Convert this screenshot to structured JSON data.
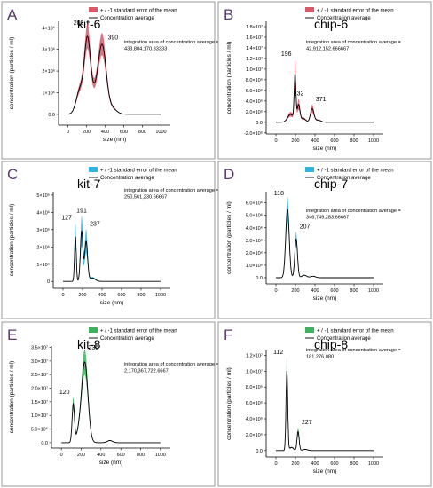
{
  "figure": {
    "x_axis_label": "size (nm)",
    "y_axis_label": "concentration (particles / ml)",
    "integration_prefix": "integration area of concentration average ="
  },
  "colors": {
    "red": "#d9596b",
    "blue": "#2fb4e3",
    "green": "#3cb35a",
    "line": "#000000",
    "border": "#9a9a9a"
  },
  "chart_data": [
    {
      "type": "line",
      "letter": "A",
      "title": "kit-6",
      "color": "red",
      "series": [
        {
          "name": "+ / -1 standard error of the mean"
        },
        {
          "name": "Concentration average"
        }
      ],
      "xlim": [
        -100,
        1100
      ],
      "ylim": [
        -500000,
        4300000
      ],
      "xticks": [
        "0",
        "200",
        "400",
        "600",
        "800",
        "1000"
      ],
      "yticks": [
        {
          "v": 0,
          "label": "0.0"
        },
        {
          "v": 1000000,
          "label": "1×10⁶"
        },
        {
          "v": 2000000,
          "label": "2×10⁶"
        },
        {
          "v": 3000000,
          "label": "3×10⁶"
        },
        {
          "v": 4000000,
          "label": "4×10⁶"
        }
      ],
      "integration_value": "433,804,170.33333",
      "peaks": [
        {
          "x": 209,
          "label": "209"
        },
        {
          "x": 390,
          "label": "390"
        }
      ],
      "components": [
        [
          130,
          1100000,
          40
        ],
        [
          209,
          3000000,
          32
        ],
        [
          280,
          900000,
          60
        ],
        [
          370,
          2900000,
          42
        ],
        [
          470,
          280000,
          50
        ]
      ],
      "band": 0.16
    },
    {
      "type": "line",
      "letter": "B",
      "title": "chip-6",
      "color": "red",
      "series": [
        {
          "name": "+ / -1 standard error of the mean"
        },
        {
          "name": "Concentration average"
        }
      ],
      "xlim": [
        -100,
        1100
      ],
      "ylim": [
        -2200000,
        19000000
      ],
      "xticks": [
        "0",
        "200",
        "400",
        "600",
        "800",
        "1000"
      ],
      "yticks": [
        {
          "v": -2000000,
          "label": "-2.0×10⁶"
        },
        {
          "v": 0,
          "label": "0.0"
        },
        {
          "v": 2000000,
          "label": "2.0×10⁶"
        },
        {
          "v": 4000000,
          "label": "4.0×10⁶"
        },
        {
          "v": 6000000,
          "label": "6.0×10⁶"
        },
        {
          "v": 8000000,
          "label": "8.0×10⁶"
        },
        {
          "v": 10000000,
          "label": "1.0×10⁷"
        },
        {
          "v": 12000000,
          "label": "1.2×10⁷"
        },
        {
          "v": 14000000,
          "label": "1.4×10⁷"
        },
        {
          "v": 16000000,
          "label": "1.6×10⁷"
        },
        {
          "v": 18000000,
          "label": "1.8×10⁷"
        }
      ],
      "integration_value": "42,912,152.666667",
      "peaks": [
        {
          "x": 196,
          "label": "196"
        },
        {
          "x": 232,
          "label": "232"
        },
        {
          "x": 371,
          "label": "371"
        }
      ],
      "components": [
        [
          150,
          1500000,
          30
        ],
        [
          196,
          8500000,
          9
        ],
        [
          232,
          3200000,
          14
        ],
        [
          280,
          700000,
          25
        ],
        [
          371,
          2500000,
          18
        ],
        [
          430,
          400000,
          30
        ]
      ],
      "band": 0.3
    },
    {
      "type": "line",
      "letter": "C",
      "title": "kit-7",
      "color": "blue",
      "series": [
        {
          "name": "+ / -1 standard error of the mean"
        },
        {
          "name": "Concentration average"
        }
      ],
      "xlim": [
        -100,
        1100
      ],
      "ylim": [
        -400000,
        5200000
      ],
      "xticks": [
        "0",
        "200",
        "400",
        "600",
        "800",
        "1000"
      ],
      "yticks": [
        {
          "v": 0,
          "label": "0"
        },
        {
          "v": 1000000,
          "label": "1×10⁶"
        },
        {
          "v": 2000000,
          "label": "2×10⁶"
        },
        {
          "v": 3000000,
          "label": "3×10⁶"
        },
        {
          "v": 4000000,
          "label": "4×10⁶"
        },
        {
          "v": 5000000,
          "label": "5×10⁶"
        }
      ],
      "integration_value": "250,561,230.66667",
      "peaks": [
        {
          "x": 127,
          "label": "127"
        },
        {
          "x": 191,
          "label": "191"
        },
        {
          "x": 237,
          "label": "237"
        }
      ],
      "components": [
        [
          127,
          2600000,
          9
        ],
        [
          191,
          2900000,
          13
        ],
        [
          237,
          2300000,
          15
        ],
        [
          300,
          200000,
          30
        ]
      ],
      "band": 0.3
    },
    {
      "type": "line",
      "letter": "D",
      "title": "chip-7",
      "color": "blue",
      "series": [
        {
          "name": "+ / -1 standard error of the mean"
        },
        {
          "name": "Concentration average"
        }
      ],
      "xlim": [
        -100,
        1100
      ],
      "ylim": [
        -500000,
        6900000
      ],
      "xticks": [
        "0",
        "200",
        "400",
        "600",
        "800",
        "1000"
      ],
      "yticks": [
        {
          "v": 0,
          "label": "0.0"
        },
        {
          "v": 1000000,
          "label": "1.0×10⁶"
        },
        {
          "v": 2000000,
          "label": "2.0×10⁶"
        },
        {
          "v": 3000000,
          "label": "3.0×10⁶"
        },
        {
          "v": 4000000,
          "label": "4.0×10⁶"
        },
        {
          "v": 5000000,
          "label": "5.0×10⁶"
        },
        {
          "v": 6000000,
          "label": "6.0×10⁶"
        }
      ],
      "integration_value": "346,749,283.66667",
      "peaks": [
        {
          "x": 118,
          "label": "118"
        },
        {
          "x": 207,
          "label": "207"
        }
      ],
      "components": [
        [
          118,
          5500000,
          18
        ],
        [
          207,
          3100000,
          14
        ],
        [
          290,
          200000,
          25
        ],
        [
          380,
          120000,
          25
        ]
      ],
      "band": 0.18
    },
    {
      "type": "line",
      "letter": "E",
      "title": "kit-8",
      "color": "green",
      "series": [
        {
          "name": "+ / -1 standard error of the mean"
        },
        {
          "name": "Concentration average"
        }
      ],
      "xlim": [
        -100,
        1100
      ],
      "ylim": [
        -2000000,
        35500000
      ],
      "xticks": [
        "0",
        "200",
        "400",
        "600",
        "800",
        "1000"
      ],
      "yticks": [
        {
          "v": 0,
          "label": "0.0"
        },
        {
          "v": 5000000,
          "label": "5.0×10⁶"
        },
        {
          "v": 10000000,
          "label": "1.0×10⁷"
        },
        {
          "v": 15000000,
          "label": "1.5×10⁷"
        },
        {
          "v": 20000000,
          "label": "2.0×10⁷"
        },
        {
          "v": 25000000,
          "label": "2.5×10⁷"
        },
        {
          "v": 30000000,
          "label": "3.0×10⁷"
        },
        {
          "v": 35000000,
          "label": "3.5×10⁷"
        }
      ],
      "integration_value": "2,170,367,722.6667",
      "peaks": [
        {
          "x": 120,
          "label": "120"
        },
        {
          "x": 236,
          "label": "236"
        }
      ],
      "components": [
        [
          120,
          14000000,
          12
        ],
        [
          175,
          3000000,
          25
        ],
        [
          236,
          29500000,
          32
        ],
        [
          490,
          800000,
          25
        ]
      ],
      "band": 0.16
    },
    {
      "type": "line",
      "letter": "F",
      "title": "chip-8",
      "color": "green",
      "series": [
        {
          "name": "+ / -1 standard error of the mean"
        },
        {
          "name": "Concentration average"
        }
      ],
      "xlim": [
        -100,
        1100
      ],
      "ylim": [
        -800000,
        12600000
      ],
      "xticks": [
        "0",
        "200",
        "400",
        "600",
        "800",
        "1000"
      ],
      "yticks": [
        {
          "v": 0,
          "label": "0.0"
        },
        {
          "v": 2000000,
          "label": "2.0×10⁶"
        },
        {
          "v": 4000000,
          "label": "4.0×10⁶"
        },
        {
          "v": 6000000,
          "label": "6.0×10⁶"
        },
        {
          "v": 8000000,
          "label": "8.0×10⁶"
        },
        {
          "v": 10000000,
          "label": "1.0×10⁷"
        },
        {
          "v": 12000000,
          "label": "1.2×10⁷"
        }
      ],
      "integration_value": "181,276,080",
      "peaks": [
        {
          "x": 112,
          "label": "112"
        },
        {
          "x": 227,
          "label": "227"
        }
      ],
      "components": [
        [
          112,
          10000000,
          9
        ],
        [
          227,
          2400000,
          11
        ],
        [
          160,
          400000,
          20
        ],
        [
          300,
          150000,
          25
        ]
      ],
      "band": 0.2
    }
  ]
}
